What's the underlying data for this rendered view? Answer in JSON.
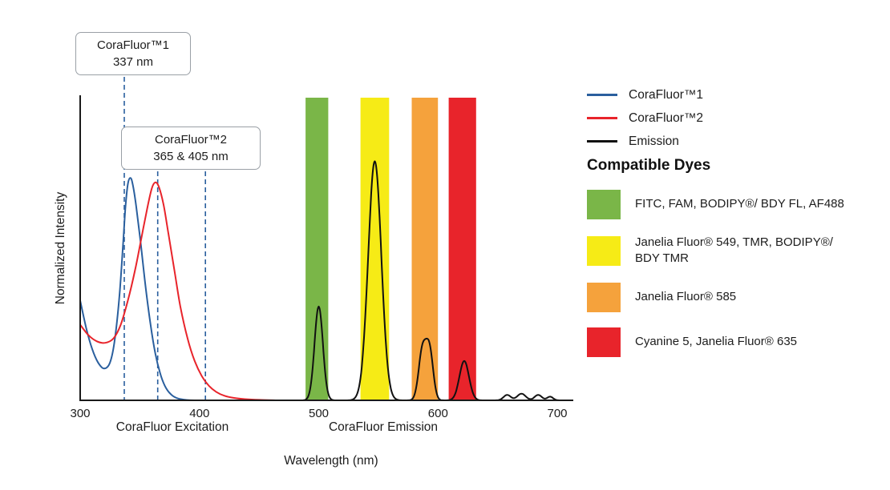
{
  "colors": {
    "marker": "#2A5F9E",
    "axis": "#1a1a1a",
    "green": "#7AB648",
    "yellow": "#F6EB16",
    "orange": "#F5A23C",
    "red": "#E8242B",
    "blue": "#2A5F9E",
    "black": "#111111"
  },
  "chart_data": {
    "type": "line",
    "title": "",
    "xlabel": "Wavelength (nm)",
    "ylabel": "Normalized Intensity",
    "x_range": [
      300,
      713
    ],
    "y_range": [
      0,
      1
    ],
    "x_ticks": [
      300,
      400,
      500,
      600,
      700
    ],
    "x_axis_group_labels": [
      "CoraFluor Excitation",
      "CoraFluor Emission"
    ],
    "grid": false,
    "legend_position": "top-right",
    "filter_bands": [
      {
        "name": "green",
        "color": "#7AB648",
        "from_nm": 489,
        "to_nm": 508
      },
      {
        "name": "yellow",
        "color": "#F6EB16",
        "from_nm": 535,
        "to_nm": 559
      },
      {
        "name": "orange",
        "color": "#F5A23C",
        "from_nm": 578,
        "to_nm": 600
      },
      {
        "name": "red",
        "color": "#E8242B",
        "from_nm": 609,
        "to_nm": 632
      }
    ],
    "markers": [
      {
        "label": "CoraFluor™1",
        "sublabel": "337 nm",
        "lines_nm": [
          337
        ]
      },
      {
        "label": "CoraFluor™2",
        "sublabel": "365 & 405 nm",
        "lines_nm": [
          365,
          405
        ]
      }
    ],
    "series": [
      {
        "id": "corafluor1",
        "name": "CoraFluor™1",
        "color": "#2A5F9E",
        "kind": "points",
        "points": [
          [
            300,
            0.33
          ],
          [
            305,
            0.24
          ],
          [
            310,
            0.17
          ],
          [
            315,
            0.125
          ],
          [
            320,
            0.105
          ],
          [
            325,
            0.125
          ],
          [
            329,
            0.2
          ],
          [
            333,
            0.35
          ],
          [
            336,
            0.52
          ],
          [
            338,
            0.64
          ],
          [
            340,
            0.715
          ],
          [
            342,
            0.735
          ],
          [
            344,
            0.715
          ],
          [
            347,
            0.64
          ],
          [
            351,
            0.51
          ],
          [
            355,
            0.37
          ],
          [
            359,
            0.25
          ],
          [
            363,
            0.155
          ],
          [
            367,
            0.09
          ],
          [
            371,
            0.048
          ],
          [
            376,
            0.02
          ],
          [
            382,
            0.006
          ],
          [
            390,
            0.001
          ],
          [
            398,
            0
          ]
        ]
      },
      {
        "id": "corafluor2",
        "name": "CoraFluor™2",
        "color": "#E8242B",
        "kind": "points",
        "points": [
          [
            300,
            0.25
          ],
          [
            307,
            0.215
          ],
          [
            314,
            0.195
          ],
          [
            321,
            0.19
          ],
          [
            328,
            0.205
          ],
          [
            334,
            0.25
          ],
          [
            340,
            0.33
          ],
          [
            346,
            0.43
          ],
          [
            351,
            0.53
          ],
          [
            356,
            0.63
          ],
          [
            360,
            0.7
          ],
          [
            363,
            0.72
          ],
          [
            366,
            0.705
          ],
          [
            370,
            0.645
          ],
          [
            374,
            0.55
          ],
          [
            379,
            0.43
          ],
          [
            384,
            0.31
          ],
          [
            390,
            0.205
          ],
          [
            396,
            0.13
          ],
          [
            402,
            0.08
          ],
          [
            408,
            0.048
          ],
          [
            414,
            0.028
          ],
          [
            421,
            0.015
          ],
          [
            429,
            0.008
          ],
          [
            438,
            0.004
          ],
          [
            450,
            0.0015
          ],
          [
            465,
            0
          ]
        ]
      },
      {
        "id": "emission",
        "name": "Emission",
        "color": "#111111",
        "kind": "gaussians",
        "from_nm": 462,
        "to_nm": 712,
        "components": [
          {
            "center": 500,
            "amp": 0.31,
            "sigma": 3.5
          },
          {
            "center": 547,
            "amp": 0.79,
            "sigma": 5.5
          },
          {
            "center": 587,
            "amp": 0.165,
            "sigma": 3.2
          },
          {
            "center": 593,
            "amp": 0.16,
            "sigma": 3.0
          },
          {
            "center": 622,
            "amp": 0.13,
            "sigma": 4.0
          },
          {
            "center": 658,
            "amp": 0.018,
            "sigma": 3.0
          },
          {
            "center": 670,
            "amp": 0.022,
            "sigma": 3.5
          },
          {
            "center": 684,
            "amp": 0.018,
            "sigma": 3.0
          },
          {
            "center": 694,
            "amp": 0.012,
            "sigma": 2.5
          }
        ]
      }
    ]
  },
  "legend": {
    "items": [
      {
        "label": "CoraFluor™1",
        "color": "#2A5F9E"
      },
      {
        "label": "CoraFluor™2",
        "color": "#E8242B"
      },
      {
        "label": "Emission",
        "color": "#111111"
      }
    ]
  },
  "dyes": {
    "title": "Compatible Dyes",
    "items": [
      {
        "label": "FITC, FAM, BODIPY®/ BDY FL, AF488",
        "color": "#7AB648"
      },
      {
        "label": "Janelia Fluor® 549, TMR, BODIPY®/ BDY TMR",
        "color": "#F6EB16"
      },
      {
        "label": "Janelia Fluor® 585",
        "color": "#F5A23C"
      },
      {
        "label": "Cyanine 5, Janelia Fluor® 635",
        "color": "#E8242B"
      }
    ]
  },
  "captions": {
    "excitation": "CoraFluor Excitation",
    "emission": "CoraFluor Emission",
    "wavelength": "Wavelength (nm)",
    "yaxis": "Normalized Intensity"
  }
}
